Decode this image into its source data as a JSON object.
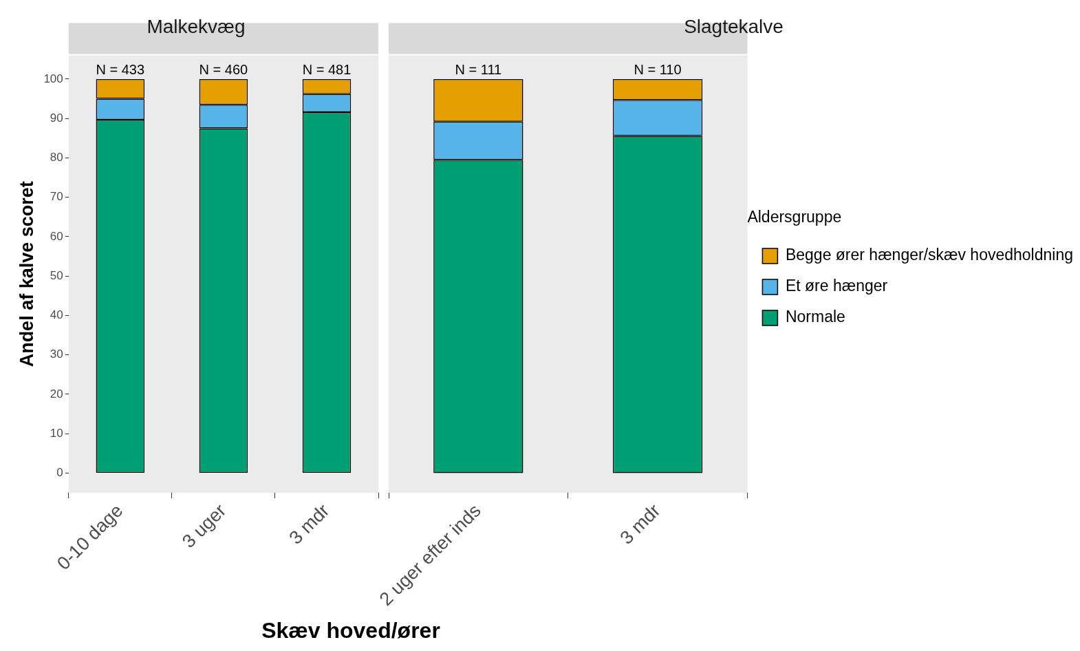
{
  "chart_data": [
    {
      "type": "bar",
      "title": "Malkekvæg",
      "ylabel": "Andel af kalve scoret",
      "xlabel": "Skæv hoved/ører",
      "categories": [
        "0-10 dage",
        "3 uger",
        "3 mdr"
      ],
      "stacked": true,
      "ylim": [
        -5,
        106
      ],
      "yticks": [
        0,
        10,
        20,
        30,
        40,
        50,
        60,
        70,
        80,
        90,
        100
      ],
      "grid": false,
      "series": [
        {
          "color": "#009e73",
          "values": [
            89.7,
            87.5,
            91.6
          ]
        },
        {
          "color": "#56b4e9",
          "values": [
            5.3,
            6.0,
            4.6
          ]
        },
        {
          "color": "#e69f00",
          "values": [
            5.0,
            6.5,
            3.8
          ]
        }
      ],
      "annotations": [
        {
          "text": "N = 433",
          "x": "0-10 dage",
          "y": 100
        },
        {
          "text": "N = 460",
          "x": "3 uger",
          "y": 100
        },
        {
          "text": "N = 481",
          "x": "3 mdr",
          "y": 100
        }
      ]
    },
    {
      "type": "bar",
      "title": "Slagtekalve",
      "categories": [
        "2 uger efter inds",
        "3 mdr"
      ],
      "stacked": true,
      "ylim": [
        -5,
        106
      ],
      "yticks": [
        0,
        10,
        20,
        30,
        40,
        50,
        60,
        70,
        80,
        90,
        100
      ],
      "grid": false,
      "tick_labels": "x",
      "legend": "right",
      "legend_title": "Aldersgruppe",
      "series": [
        {
          "name": "Normale",
          "color": "#009e73",
          "values": [
            79.5,
            85.6
          ]
        },
        {
          "name": "Et øre hænger",
          "color": "#56b4e9",
          "values": [
            9.7,
            9.1
          ]
        },
        {
          "name": "Begge ører hænger/skæv hovedholdning",
          "color": "#e69f00",
          "values": [
            10.8,
            5.3
          ]
        }
      ],
      "annotations": [
        {
          "text": "N = 111",
          "x": "2 uger efter inds",
          "y": 100
        },
        {
          "text": "N = 110",
          "x": "3 mdr",
          "y": 100
        }
      ]
    }
  ]
}
